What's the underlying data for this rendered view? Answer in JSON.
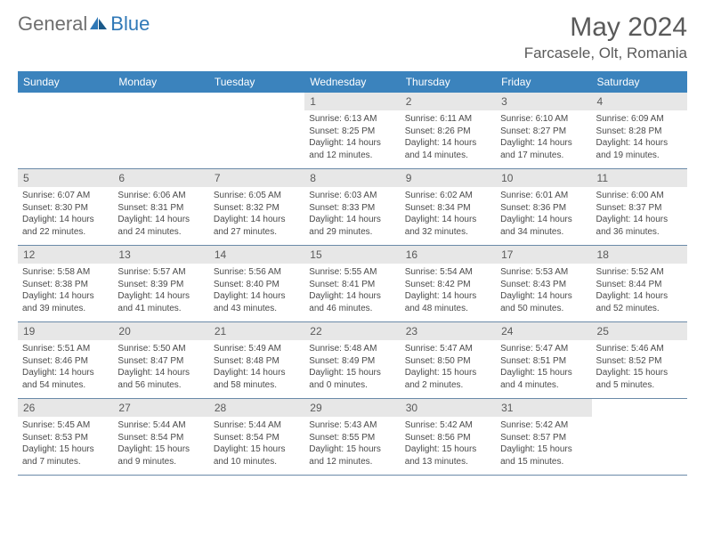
{
  "brand": {
    "part1": "General",
    "part2": "Blue"
  },
  "title": "May 2024",
  "location": "Farcasele, Olt, Romania",
  "colors": {
    "header_band": "#3b83bd",
    "day_band": "#e7e7e7",
    "row_border": "#6a8aa8",
    "text_gray": "#5a5a5a",
    "brand_blue": "#2f78b7",
    "brand_gray": "#6f6f6f"
  },
  "weekdays": [
    "Sunday",
    "Monday",
    "Tuesday",
    "Wednesday",
    "Thursday",
    "Friday",
    "Saturday"
  ],
  "weeks": [
    [
      null,
      null,
      null,
      {
        "n": "1",
        "sunrise": "6:13 AM",
        "sunset": "8:25 PM",
        "dayh": "14",
        "daym": "12"
      },
      {
        "n": "2",
        "sunrise": "6:11 AM",
        "sunset": "8:26 PM",
        "dayh": "14",
        "daym": "14"
      },
      {
        "n": "3",
        "sunrise": "6:10 AM",
        "sunset": "8:27 PM",
        "dayh": "14",
        "daym": "17"
      },
      {
        "n": "4",
        "sunrise": "6:09 AM",
        "sunset": "8:28 PM",
        "dayh": "14",
        "daym": "19"
      }
    ],
    [
      {
        "n": "5",
        "sunrise": "6:07 AM",
        "sunset": "8:30 PM",
        "dayh": "14",
        "daym": "22"
      },
      {
        "n": "6",
        "sunrise": "6:06 AM",
        "sunset": "8:31 PM",
        "dayh": "14",
        "daym": "24"
      },
      {
        "n": "7",
        "sunrise": "6:05 AM",
        "sunset": "8:32 PM",
        "dayh": "14",
        "daym": "27"
      },
      {
        "n": "8",
        "sunrise": "6:03 AM",
        "sunset": "8:33 PM",
        "dayh": "14",
        "daym": "29"
      },
      {
        "n": "9",
        "sunrise": "6:02 AM",
        "sunset": "8:34 PM",
        "dayh": "14",
        "daym": "32"
      },
      {
        "n": "10",
        "sunrise": "6:01 AM",
        "sunset": "8:36 PM",
        "dayh": "14",
        "daym": "34"
      },
      {
        "n": "11",
        "sunrise": "6:00 AM",
        "sunset": "8:37 PM",
        "dayh": "14",
        "daym": "36"
      }
    ],
    [
      {
        "n": "12",
        "sunrise": "5:58 AM",
        "sunset": "8:38 PM",
        "dayh": "14",
        "daym": "39"
      },
      {
        "n": "13",
        "sunrise": "5:57 AM",
        "sunset": "8:39 PM",
        "dayh": "14",
        "daym": "41"
      },
      {
        "n": "14",
        "sunrise": "5:56 AM",
        "sunset": "8:40 PM",
        "dayh": "14",
        "daym": "43"
      },
      {
        "n": "15",
        "sunrise": "5:55 AM",
        "sunset": "8:41 PM",
        "dayh": "14",
        "daym": "46"
      },
      {
        "n": "16",
        "sunrise": "5:54 AM",
        "sunset": "8:42 PM",
        "dayh": "14",
        "daym": "48"
      },
      {
        "n": "17",
        "sunrise": "5:53 AM",
        "sunset": "8:43 PM",
        "dayh": "14",
        "daym": "50"
      },
      {
        "n": "18",
        "sunrise": "5:52 AM",
        "sunset": "8:44 PM",
        "dayh": "14",
        "daym": "52"
      }
    ],
    [
      {
        "n": "19",
        "sunrise": "5:51 AM",
        "sunset": "8:46 PM",
        "dayh": "14",
        "daym": "54"
      },
      {
        "n": "20",
        "sunrise": "5:50 AM",
        "sunset": "8:47 PM",
        "dayh": "14",
        "daym": "56"
      },
      {
        "n": "21",
        "sunrise": "5:49 AM",
        "sunset": "8:48 PM",
        "dayh": "14",
        "daym": "58"
      },
      {
        "n": "22",
        "sunrise": "5:48 AM",
        "sunset": "8:49 PM",
        "dayh": "15",
        "daym": "0"
      },
      {
        "n": "23",
        "sunrise": "5:47 AM",
        "sunset": "8:50 PM",
        "dayh": "15",
        "daym": "2"
      },
      {
        "n": "24",
        "sunrise": "5:47 AM",
        "sunset": "8:51 PM",
        "dayh": "15",
        "daym": "4"
      },
      {
        "n": "25",
        "sunrise": "5:46 AM",
        "sunset": "8:52 PM",
        "dayh": "15",
        "daym": "5"
      }
    ],
    [
      {
        "n": "26",
        "sunrise": "5:45 AM",
        "sunset": "8:53 PM",
        "dayh": "15",
        "daym": "7"
      },
      {
        "n": "27",
        "sunrise": "5:44 AM",
        "sunset": "8:54 PM",
        "dayh": "15",
        "daym": "9"
      },
      {
        "n": "28",
        "sunrise": "5:44 AM",
        "sunset": "8:54 PM",
        "dayh": "15",
        "daym": "10"
      },
      {
        "n": "29",
        "sunrise": "5:43 AM",
        "sunset": "8:55 PM",
        "dayh": "15",
        "daym": "12"
      },
      {
        "n": "30",
        "sunrise": "5:42 AM",
        "sunset": "8:56 PM",
        "dayh": "15",
        "daym": "13"
      },
      {
        "n": "31",
        "sunrise": "5:42 AM",
        "sunset": "8:57 PM",
        "dayh": "15",
        "daym": "15"
      },
      null
    ]
  ],
  "labels": {
    "sunrise": "Sunrise: ",
    "sunset": "Sunset: ",
    "daylight1": "Daylight: ",
    "hours": " hours",
    "and": "and ",
    "minutes": " minutes."
  }
}
